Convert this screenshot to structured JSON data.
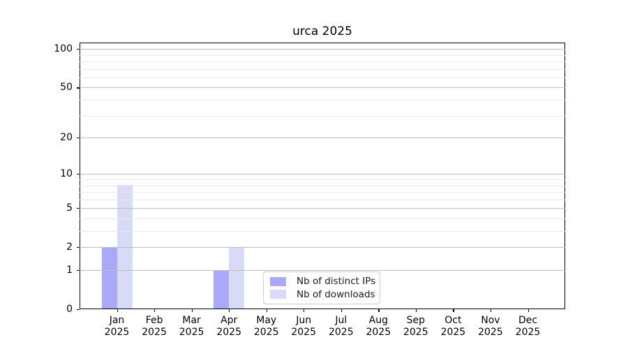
{
  "chart_data": {
    "type": "bar",
    "title": "urca 2025",
    "categories": [
      "Jan",
      "Feb",
      "Mar",
      "Apr",
      "May",
      "Jun",
      "Jul",
      "Aug",
      "Sep",
      "Oct",
      "Nov",
      "Dec"
    ],
    "category_year": "2025",
    "series": [
      {
        "name": "Nb of distinct IPs",
        "color": "#a9a9f8",
        "values": [
          2,
          0,
          0,
          1,
          0,
          0,
          0,
          0,
          0,
          0,
          0,
          0
        ]
      },
      {
        "name": "Nb of downloads",
        "color": "#d9d9f8",
        "values": [
          8,
          0,
          0,
          2,
          0,
          0,
          0,
          0,
          0,
          0,
          0,
          0
        ]
      }
    ],
    "yscale": "log1p",
    "yticks": [
      0,
      1,
      2,
      5,
      10,
      20,
      50,
      100
    ],
    "minor_yticks": [
      3,
      4,
      6,
      7,
      8,
      9,
      30,
      40,
      60,
      70,
      80,
      90
    ],
    "ylim": [
      0,
      112
    ],
    "xlabel": "",
    "ylabel": "",
    "grid": "horizontal major+minor",
    "legend_position": "lower center inside plot"
  },
  "colors": {
    "major_grid": "#bdbdbd",
    "minor_grid": "#e9e9e9",
    "axis": "#000000",
    "legend_border": "#cccccc",
    "background": "#ffffff"
  }
}
